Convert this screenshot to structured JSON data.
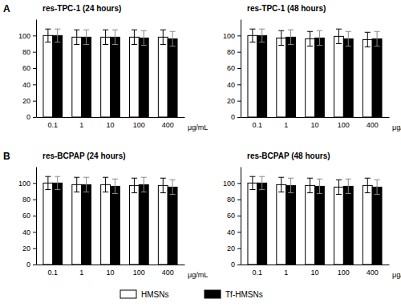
{
  "chart_data": [
    {
      "type": "bar",
      "title": "res-TPC-1 (24 hours)",
      "annotations": [
        "A"
      ],
      "x_label": "μg/mL",
      "categories": [
        "0.1",
        "1",
        "10",
        "100",
        "400"
      ],
      "series": [
        {
          "name": "HMSNs",
          "color": "#ffffff",
          "values": [
            100,
            98,
            98,
            98,
            98
          ],
          "errors": [
            8,
            9,
            9,
            9,
            9
          ]
        },
        {
          "name": "Tf-HMSNs",
          "color": "#000000",
          "values": [
            100,
            98,
            98,
            97,
            96
          ],
          "errors": [
            8,
            9,
            9,
            9,
            9
          ]
        }
      ],
      "ylim": [
        0,
        120
      ],
      "yticks": [
        0,
        20,
        40,
        60,
        80,
        100
      ]
    },
    {
      "type": "bar",
      "title": "res-TPC-1 (48 hours)",
      "x_label": "μg/mL",
      "categories": [
        "0.1",
        "1",
        "10",
        "100",
        "400"
      ],
      "series": [
        {
          "name": "HMSNs",
          "color": "#ffffff",
          "values": [
            100,
            97,
            96,
            99,
            95
          ],
          "errors": [
            8,
            9,
            9,
            9,
            9
          ]
        },
        {
          "name": "Tf-HMSNs",
          "color": "#000000",
          "values": [
            100,
            98,
            97,
            96,
            96
          ],
          "errors": [
            8,
            9,
            9,
            9,
            9
          ]
        }
      ],
      "ylim": [
        0,
        120
      ],
      "yticks": [
        0,
        20,
        40,
        60,
        80,
        100
      ]
    },
    {
      "type": "bar",
      "title": "res-BCPAP (24 hours)",
      "annotations": [
        "B"
      ],
      "x_label": "μg/mL",
      "categories": [
        "0.1",
        "1",
        "10",
        "100",
        "400"
      ],
      "series": [
        {
          "name": "HMSNs",
          "color": "#ffffff",
          "values": [
            100,
            98,
            98,
            97,
            97
          ],
          "errors": [
            8,
            9,
            9,
            9,
            9
          ]
        },
        {
          "name": "Tf-HMSNs",
          "color": "#000000",
          "values": [
            100,
            98,
            96,
            98,
            95
          ],
          "errors": [
            8,
            9,
            9,
            9,
            9
          ]
        }
      ],
      "ylim": [
        0,
        120
      ],
      "yticks": [
        0,
        20,
        40,
        60,
        80,
        100
      ]
    },
    {
      "type": "bar",
      "title": "res-BCPAP (48 hours)",
      "x_label": "μg/mL",
      "categories": [
        "0.1",
        "1",
        "10",
        "100",
        "400"
      ],
      "series": [
        {
          "name": "HMSNs",
          "color": "#ffffff",
          "values": [
            100,
            98,
            97,
            95,
            97
          ],
          "errors": [
            8,
            9,
            9,
            9,
            9
          ]
        },
        {
          "name": "Tf-HMSNs",
          "color": "#000000",
          "values": [
            100,
            97,
            96,
            96,
            95
          ],
          "errors": [
            8,
            9,
            9,
            9,
            9
          ]
        }
      ],
      "ylim": [
        0,
        120
      ],
      "yticks": [
        0,
        20,
        40,
        60,
        80,
        100
      ]
    }
  ]
}
